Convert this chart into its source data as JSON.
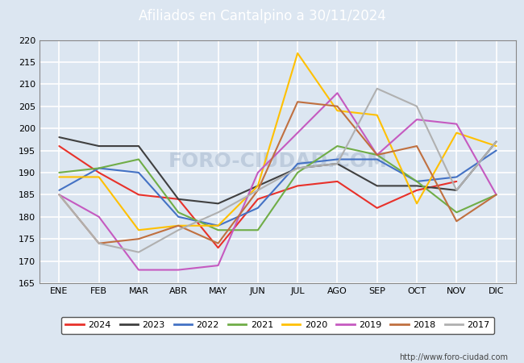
{
  "title": "Afiliados en Cantalpino a 30/11/2024",
  "months": [
    "ENE",
    "FEB",
    "MAR",
    "ABR",
    "MAY",
    "JUN",
    "JUL",
    "AGO",
    "SEP",
    "OCT",
    "NOV",
    "DIC"
  ],
  "ylim": [
    165,
    220
  ],
  "yticks": [
    165,
    170,
    175,
    180,
    185,
    190,
    195,
    200,
    205,
    210,
    215,
    220
  ],
  "series": [
    {
      "label": "2024",
      "color": "#e8312a",
      "data": [
        196,
        190,
        185,
        184,
        173,
        184,
        187,
        188,
        182,
        186,
        188,
        null
      ]
    },
    {
      "label": "2023",
      "color": "#404040",
      "data": [
        198,
        196,
        196,
        184,
        183,
        187,
        191,
        192,
        187,
        187,
        186,
        197
      ]
    },
    {
      "label": "2022",
      "color": "#4472c4",
      "data": [
        186,
        191,
        190,
        180,
        178,
        182,
        192,
        193,
        193,
        188,
        189,
        195
      ]
    },
    {
      "label": "2021",
      "color": "#70ad47",
      "data": [
        190,
        191,
        193,
        181,
        177,
        177,
        190,
        196,
        194,
        188,
        181,
        185
      ]
    },
    {
      "label": "2020",
      "color": "#ffc000",
      "data": [
        189,
        189,
        177,
        178,
        178,
        187,
        217,
        204,
        203,
        183,
        199,
        196
      ]
    },
    {
      "label": "2019",
      "color": "#c55ac0",
      "data": [
        185,
        180,
        168,
        168,
        169,
        190,
        199,
        208,
        194,
        202,
        201,
        185
      ]
    },
    {
      "label": "2018",
      "color": "#c07040",
      "data": [
        185,
        174,
        175,
        178,
        174,
        186,
        206,
        205,
        194,
        196,
        179,
        185
      ]
    },
    {
      "label": "2017",
      "color": "#b0b0b0",
      "data": [
        185,
        174,
        172,
        177,
        181,
        186,
        191,
        192,
        209,
        205,
        186,
        197
      ]
    }
  ],
  "header_color": "#3a6fbc",
  "title_fontsize": 12,
  "plot_bg": "#dce6f1",
  "fig_bg": "#dce6f1",
  "grid_color": "#ffffff",
  "grid_linewidth": 1.2,
  "watermark": "FORO-CIUDAD.COM",
  "watermark_color": "#aabbd0",
  "footer_text": "http://www.foro-ciudad.com",
  "linewidth": 1.5,
  "tick_fontsize": 8,
  "legend_fontsize": 8
}
